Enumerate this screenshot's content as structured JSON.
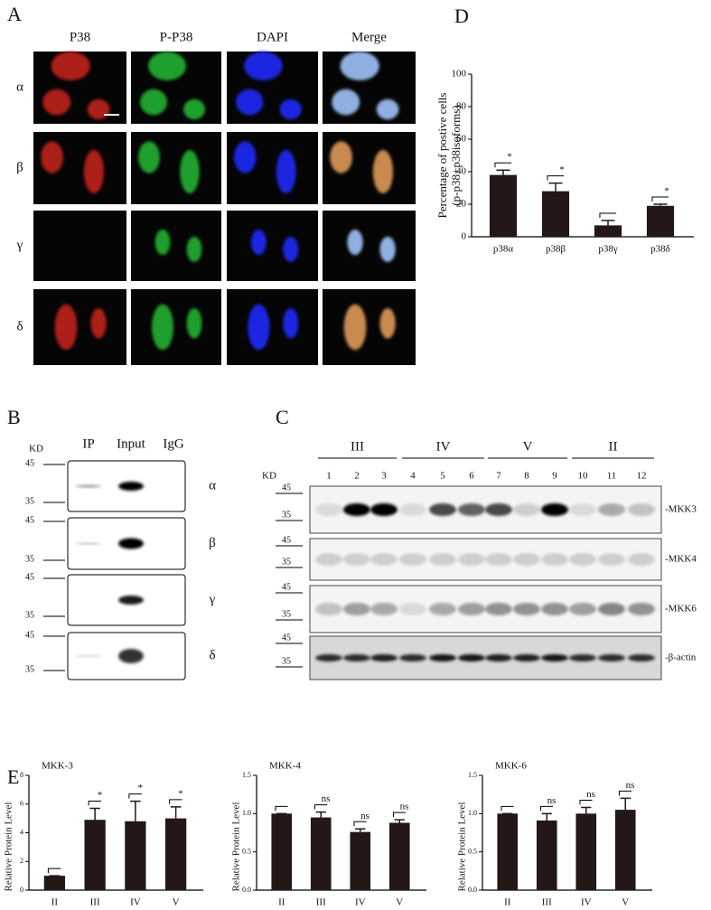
{
  "panel_labels": [
    "A",
    "B",
    "C",
    "D",
    "E"
  ],
  "panel_a": {
    "columns": [
      "P38",
      "P-P38",
      "DAPI",
      "Merge"
    ],
    "rows": [
      "α",
      "β",
      "γ",
      "δ"
    ]
  },
  "panel_b": {
    "kd": "KD",
    "columns": [
      "IP",
      "Input",
      "IgG"
    ],
    "rows": [
      "α",
      "β",
      "γ",
      "δ"
    ],
    "markers": [
      "45",
      "35"
    ]
  },
  "panel_c": {
    "kd": "KD",
    "groups": [
      "III",
      "IV",
      "V",
      "II"
    ],
    "lanes": [
      "1",
      "2",
      "3",
      "4",
      "5",
      "6",
      "7",
      "8",
      "9",
      "10",
      "11",
      "12"
    ],
    "markers": [
      "45",
      "35"
    ],
    "rows": [
      "-MKK3",
      "-MKK4",
      "-MKK6",
      "-β-actin"
    ]
  },
  "chart_data": [
    {
      "type": "bar",
      "ylabel": [
        "Percentage of postive cells",
        "(p-p38+p38isoforms)"
      ],
      "categories": [
        "p38α",
        "p38β",
        "p38γ",
        "p38δ"
      ],
      "values": [
        38,
        28,
        7,
        19
      ],
      "errors": [
        3,
        5,
        3,
        1
      ],
      "annotations": [
        "*",
        "*",
        null,
        "*"
      ],
      "color": "#231815",
      "ylim": [
        0,
        100
      ],
      "yticks": [
        0,
        20,
        40,
        60,
        80,
        100
      ]
    },
    {
      "type": "bar",
      "title": "MKK-3",
      "ylabel": "Relative Protein Level",
      "categories": [
        "II",
        "III",
        "IV",
        "V"
      ],
      "values": [
        1,
        4.9,
        4.8,
        5.0
      ],
      "errors": [
        0,
        0.8,
        1.4,
        0.8
      ],
      "annotations": [
        null,
        "*",
        "*",
        "*"
      ],
      "color": "#231815",
      "ylim": [
        0,
        8
      ],
      "yticks": [
        0,
        2,
        4,
        6,
        8
      ]
    },
    {
      "type": "bar",
      "title": "MKK-4",
      "ylabel": "Relative Protein Level",
      "categories": [
        "II",
        "III",
        "IV",
        "V"
      ],
      "values": [
        1.0,
        0.95,
        0.76,
        0.88
      ],
      "errors": [
        0,
        0.07,
        0.04,
        0.04
      ],
      "annotations": [
        null,
        "ns",
        "ns",
        "ns"
      ],
      "color": "#231815",
      "ylim": [
        0,
        1.5
      ],
      "yticks": [
        {
          "value": 0,
          "label": "0.0"
        },
        {
          "value": 0.5,
          "label": "0.5"
        },
        {
          "value": 1,
          "label": "1.0"
        },
        {
          "value": 1.5,
          "label": "1.5"
        }
      ]
    },
    {
      "type": "bar",
      "title": "MKK-6",
      "ylabel": "Relative Protein Level",
      "categories": [
        "II",
        "III",
        "IV",
        "V"
      ],
      "values": [
        1.0,
        0.91,
        1.0,
        1.05
      ],
      "errors": [
        0,
        0.09,
        0.08,
        0.15
      ],
      "annotations": [
        null,
        "ns",
        "ns",
        "ns"
      ],
      "color": "#231815",
      "ylim": [
        0,
        1.5
      ],
      "yticks": [
        {
          "value": 0,
          "label": "0.0"
        },
        {
          "value": 0.5,
          "label": "0.5"
        },
        {
          "value": 1,
          "label": "1.0"
        },
        {
          "value": 1.5,
          "label": "1.5"
        }
      ]
    }
  ]
}
